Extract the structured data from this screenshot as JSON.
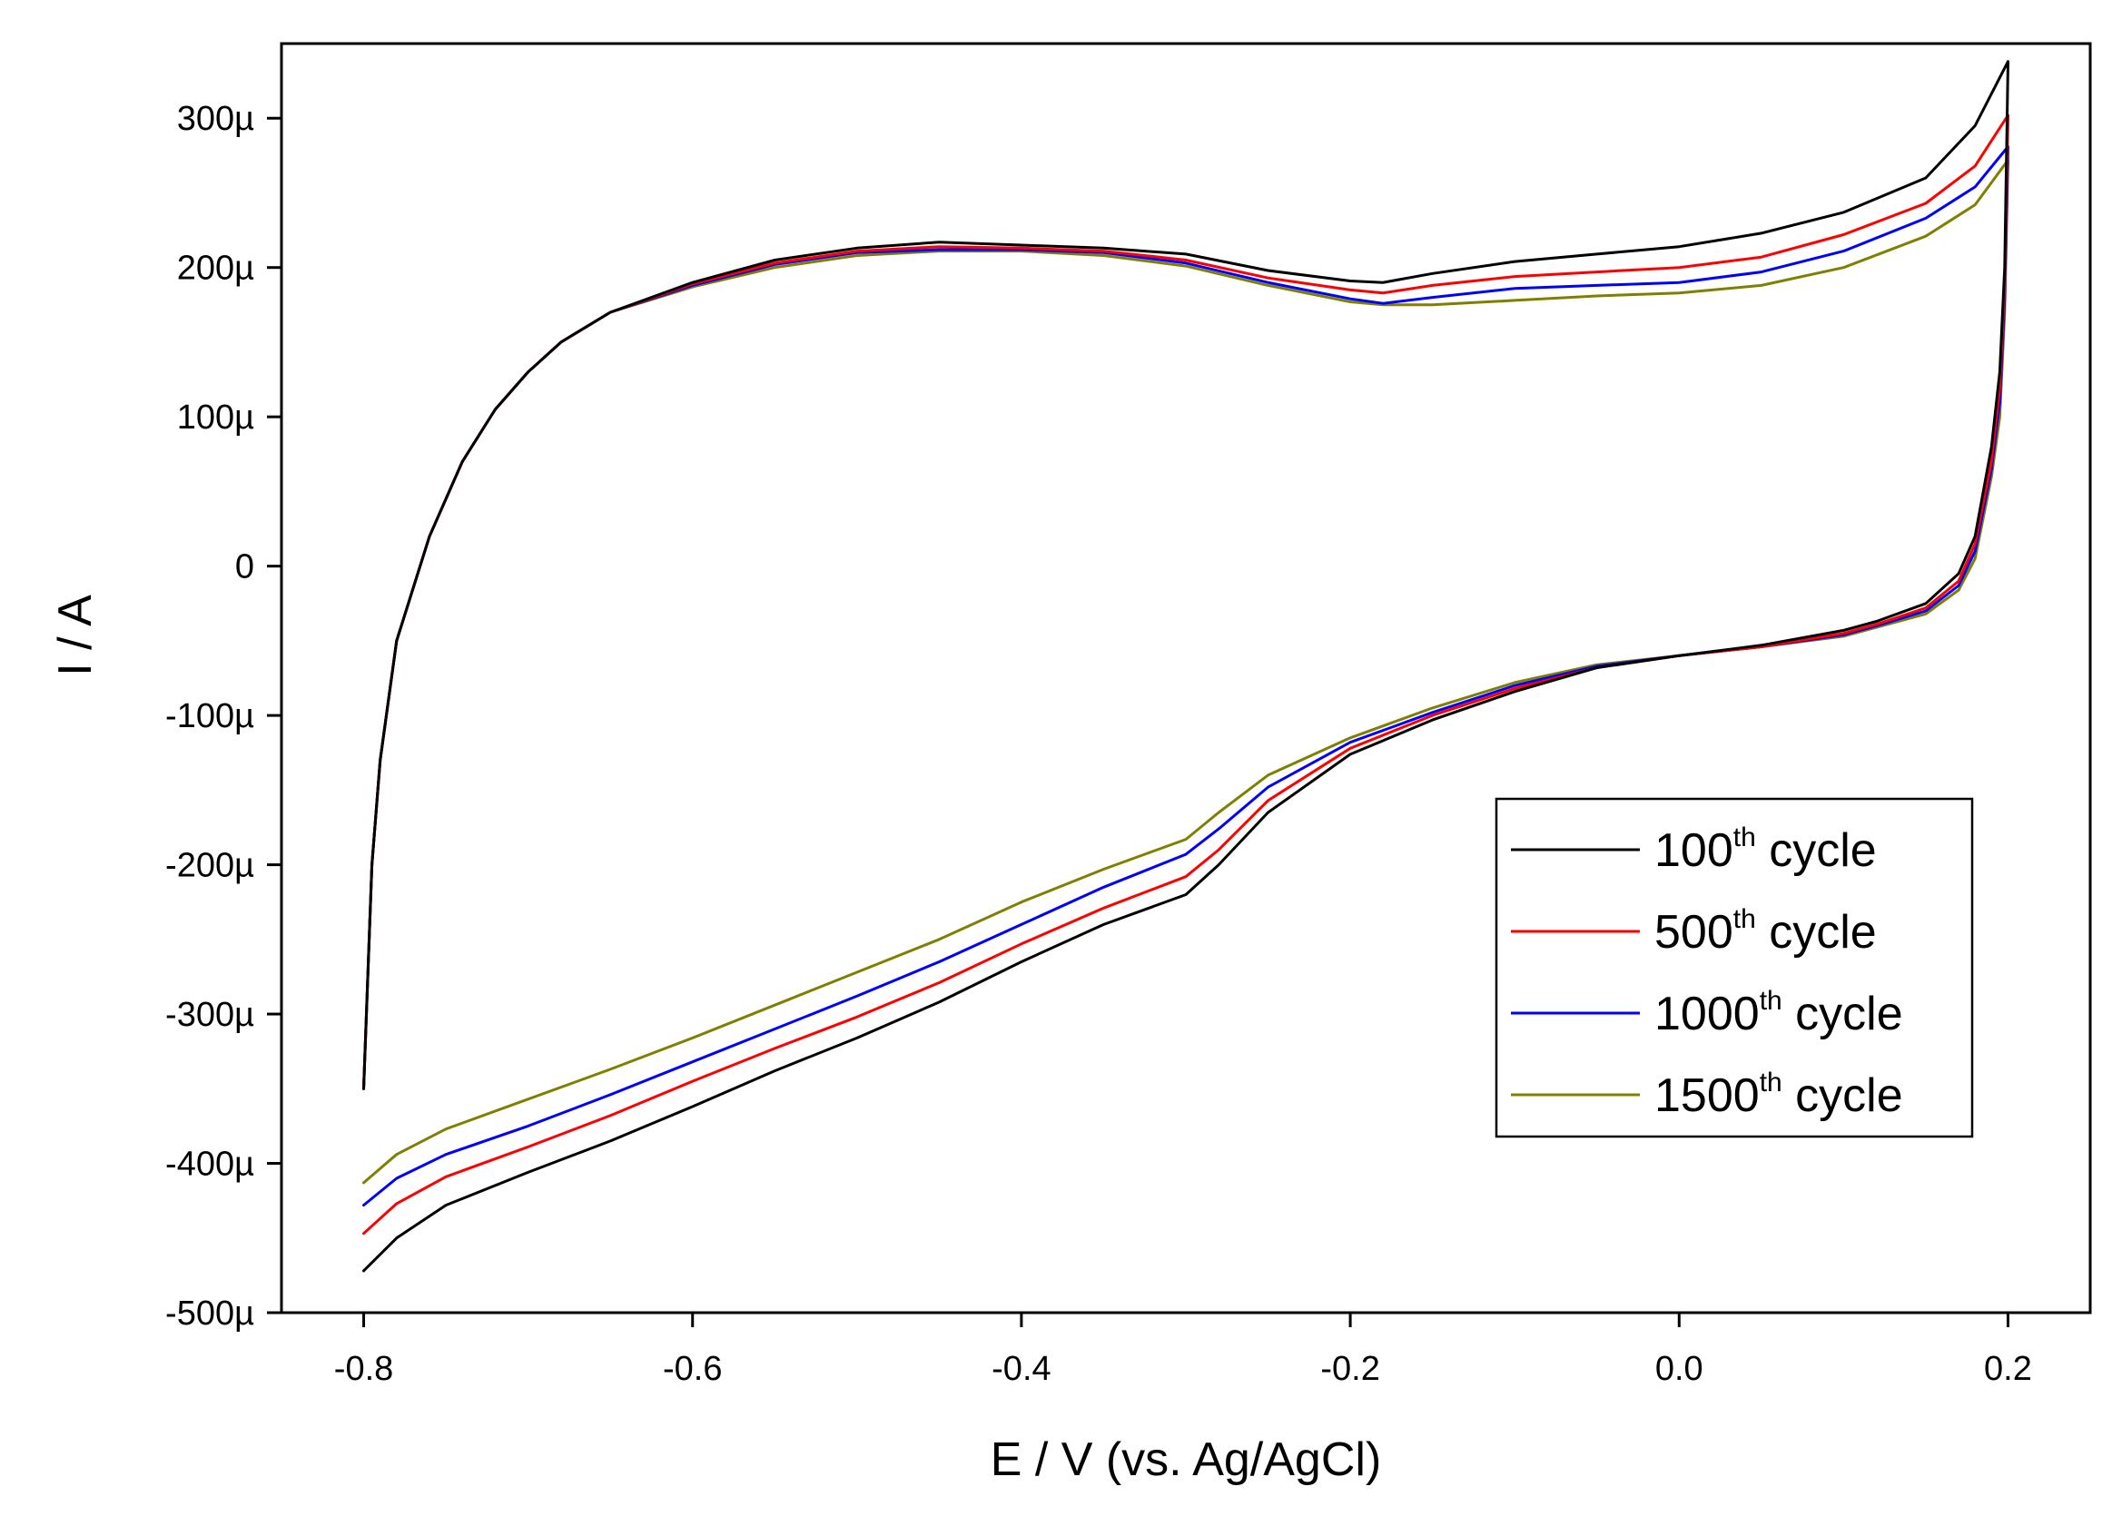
{
  "chart_data": {
    "type": "line",
    "title": "",
    "xlabel": "E / V (vs. Ag/AgCl)",
    "ylabel": "I / A",
    "xlim": [
      -0.85,
      0.25
    ],
    "ylim": [
      -0.0005,
      0.00035
    ],
    "x_ticks": [
      -0.8,
      -0.6,
      -0.4,
      -0.2,
      0.0,
      0.2
    ],
    "x_tick_labels": [
      "-0.8",
      "-0.6",
      "-0.4",
      "-0.2",
      "0.0",
      "0.2"
    ],
    "y_ticks": [
      -0.0005,
      -0.0004,
      -0.0003,
      -0.0002,
      -0.0001,
      0,
      0.0001,
      0.0002,
      0.0003
    ],
    "y_tick_labels": [
      "-500µ",
      "-400µ",
      "-300µ",
      "-200µ",
      "-100µ",
      "0",
      "100µ",
      "200µ",
      "300µ"
    ],
    "legend_position": "right-lower",
    "series": [
      {
        "name_num": "100",
        "name_sup": "th",
        "name_rest": " cycle",
        "color": "#000000",
        "anodic": {
          "x": [
            -0.8,
            -0.795,
            -0.79,
            -0.78,
            -0.77,
            -0.76,
            -0.75,
            -0.74,
            -0.72,
            -0.7,
            -0.68,
            -0.65,
            -0.6,
            -0.55,
            -0.5,
            -0.45,
            -0.4,
            -0.35,
            -0.3,
            -0.25,
            -0.2,
            -0.18,
            -0.15,
            -0.1,
            -0.05,
            0.0,
            0.05,
            0.1,
            0.15,
            0.18,
            0.2
          ],
          "y": [
            -0.00035,
            -0.0002,
            -0.00013,
            -5e-05,
            -1.5e-05,
            2e-05,
            4.5e-05,
            7e-05,
            0.000105,
            0.00013,
            0.00015,
            0.00017,
            0.00019,
            0.000205,
            0.000213,
            0.000217,
            0.000215,
            0.000213,
            0.000209,
            0.000198,
            0.000191,
            0.00019,
            0.000196,
            0.000204,
            0.000209,
            0.000214,
            0.000223,
            0.000237,
            0.00026,
            0.000295,
            0.000338
          ]
        },
        "cathodic": {
          "x": [
            0.2,
            0.198,
            0.195,
            0.19,
            0.18,
            0.17,
            0.15,
            0.12,
            0.1,
            0.05,
            0.0,
            -0.05,
            -0.1,
            -0.15,
            -0.2,
            -0.25,
            -0.28,
            -0.3,
            -0.35,
            -0.4,
            -0.45,
            -0.5,
            -0.55,
            -0.6,
            -0.65,
            -0.7,
            -0.75,
            -0.78,
            -0.8
          ],
          "y": [
            0.000338,
            0.0002,
            0.00013,
            8e-05,
            2e-05,
            -5e-06,
            -2.5e-05,
            -3.7e-05,
            -4.3e-05,
            -5.3e-05,
            -6e-05,
            -6.8e-05,
            -8.4e-05,
            -0.000103,
            -0.000126,
            -0.000165,
            -0.0002,
            -0.00022,
            -0.00024,
            -0.000265,
            -0.000292,
            -0.000316,
            -0.000338,
            -0.000362,
            -0.000385,
            -0.000406,
            -0.000428,
            -0.00045,
            -0.000472
          ]
        }
      },
      {
        "name_num": "500",
        "name_sup": "th",
        "name_rest": " cycle",
        "color": "#ff0000",
        "anodic": {
          "x": [
            -0.8,
            -0.795,
            -0.79,
            -0.78,
            -0.77,
            -0.76,
            -0.75,
            -0.74,
            -0.72,
            -0.7,
            -0.68,
            -0.65,
            -0.6,
            -0.55,
            -0.5,
            -0.45,
            -0.4,
            -0.35,
            -0.3,
            -0.25,
            -0.2,
            -0.18,
            -0.15,
            -0.1,
            -0.05,
            0.0,
            0.05,
            0.1,
            0.15,
            0.18,
            0.2
          ],
          "y": [
            -0.00035,
            -0.0002,
            -0.00013,
            -5e-05,
            -1.5e-05,
            2e-05,
            4.5e-05,
            7e-05,
            0.000105,
            0.00013,
            0.00015,
            0.00017,
            0.000189,
            0.000203,
            0.000211,
            0.000214,
            0.000213,
            0.000211,
            0.000205,
            0.000193,
            0.000185,
            0.000183,
            0.000188,
            0.000194,
            0.000197,
            0.0002,
            0.000207,
            0.000222,
            0.000243,
            0.000268,
            0.000302
          ]
        },
        "cathodic": {
          "x": [
            0.2,
            0.198,
            0.195,
            0.19,
            0.18,
            0.17,
            0.15,
            0.12,
            0.1,
            0.05,
            0.0,
            -0.05,
            -0.1,
            -0.15,
            -0.2,
            -0.25,
            -0.28,
            -0.3,
            -0.35,
            -0.4,
            -0.45,
            -0.5,
            -0.55,
            -0.6,
            -0.65,
            -0.7,
            -0.75,
            -0.78,
            -0.8
          ],
          "y": [
            0.000302,
            0.00019,
            0.00012,
            7e-05,
            1.5e-05,
            -1e-05,
            -2.8e-05,
            -3.9e-05,
            -4.5e-05,
            -5.4e-05,
            -6e-05,
            -6.8e-05,
            -8.2e-05,
            -0.0001,
            -0.000122,
            -0.000157,
            -0.00019,
            -0.000208,
            -0.000229,
            -0.000253,
            -0.000279,
            -0.000302,
            -0.000323,
            -0.000345,
            -0.000368,
            -0.000389,
            -0.000409,
            -0.000427,
            -0.000447
          ]
        }
      },
      {
        "name_num": "1000",
        "name_sup": "th",
        "name_rest": " cycle",
        "color": "#0000ff",
        "anodic": {
          "x": [
            -0.8,
            -0.795,
            -0.79,
            -0.78,
            -0.77,
            -0.76,
            -0.75,
            -0.74,
            -0.72,
            -0.7,
            -0.68,
            -0.65,
            -0.6,
            -0.55,
            -0.5,
            -0.45,
            -0.4,
            -0.35,
            -0.3,
            -0.25,
            -0.2,
            -0.18,
            -0.15,
            -0.1,
            -0.05,
            0.0,
            0.05,
            0.1,
            0.15,
            0.18,
            0.2
          ],
          "y": [
            -0.00035,
            -0.0002,
            -0.00013,
            -5e-05,
            -1.5e-05,
            2e-05,
            4.5e-05,
            7e-05,
            0.000105,
            0.00013,
            0.00015,
            0.00017,
            0.000188,
            0.000202,
            0.00021,
            0.000212,
            0.000212,
            0.00021,
            0.000203,
            0.00019,
            0.000179,
            0.000176,
            0.00018,
            0.000186,
            0.000188,
            0.00019,
            0.000197,
            0.000211,
            0.000233,
            0.000254,
            0.000281
          ]
        },
        "cathodic": {
          "x": [
            0.2,
            0.198,
            0.195,
            0.19,
            0.18,
            0.17,
            0.15,
            0.12,
            0.1,
            0.05,
            0.0,
            -0.05,
            -0.1,
            -0.15,
            -0.2,
            -0.25,
            -0.28,
            -0.3,
            -0.35,
            -0.4,
            -0.45,
            -0.5,
            -0.55,
            -0.6,
            -0.65,
            -0.7,
            -0.75,
            -0.78,
            -0.8
          ],
          "y": [
            0.000281,
            0.00018,
            0.00011,
            6.5e-05,
            1e-05,
            -1.3e-05,
            -3e-05,
            -4e-05,
            -4.6e-05,
            -5.4e-05,
            -6e-05,
            -6.7e-05,
            -8e-05,
            -9.8e-05,
            -0.000118,
            -0.000148,
            -0.000176,
            -0.000193,
            -0.000215,
            -0.00024,
            -0.000265,
            -0.000288,
            -0.00031,
            -0.000332,
            -0.000354,
            -0.000375,
            -0.000394,
            -0.00041,
            -0.000428
          ]
        }
      },
      {
        "name_num": "1500",
        "name_sup": "th",
        "name_rest": " cycle",
        "color": "#808000",
        "anodic": {
          "x": [
            -0.8,
            -0.795,
            -0.79,
            -0.78,
            -0.77,
            -0.76,
            -0.75,
            -0.74,
            -0.72,
            -0.7,
            -0.68,
            -0.65,
            -0.6,
            -0.55,
            -0.5,
            -0.45,
            -0.4,
            -0.35,
            -0.3,
            -0.25,
            -0.2,
            -0.18,
            -0.15,
            -0.1,
            -0.05,
            0.0,
            0.05,
            0.1,
            0.15,
            0.18,
            0.2
          ],
          "y": [
            -0.00035,
            -0.0002,
            -0.00013,
            -5e-05,
            -1.5e-05,
            2e-05,
            4.5e-05,
            7e-05,
            0.000105,
            0.00013,
            0.00015,
            0.00017,
            0.000187,
            0.0002,
            0.000208,
            0.000211,
            0.000211,
            0.000208,
            0.000201,
            0.000188,
            0.000177,
            0.000175,
            0.000175,
            0.000178,
            0.000181,
            0.000183,
            0.000188,
            0.0002,
            0.000221,
            0.000242,
            0.000272
          ]
        },
        "cathodic": {
          "x": [
            0.2,
            0.198,
            0.195,
            0.19,
            0.18,
            0.17,
            0.15,
            0.12,
            0.1,
            0.05,
            0.0,
            -0.05,
            -0.1,
            -0.15,
            -0.2,
            -0.25,
            -0.28,
            -0.3,
            -0.35,
            -0.4,
            -0.45,
            -0.5,
            -0.55,
            -0.6,
            -0.65,
            -0.7,
            -0.75,
            -0.78,
            -0.8
          ],
          "y": [
            0.000272,
            0.00017,
            0.0001,
            6e-05,
            5e-06,
            -1.6e-05,
            -3.2e-05,
            -4.1e-05,
            -4.7e-05,
            -5.4e-05,
            -6e-05,
            -6.6e-05,
            -7.8e-05,
            -9.5e-05,
            -0.000115,
            -0.00014,
            -0.000165,
            -0.000183,
            -0.000203,
            -0.000225,
            -0.00025,
            -0.000272,
            -0.000294,
            -0.000316,
            -0.000337,
            -0.000357,
            -0.000377,
            -0.000394,
            -0.000413
          ]
        }
      }
    ]
  }
}
